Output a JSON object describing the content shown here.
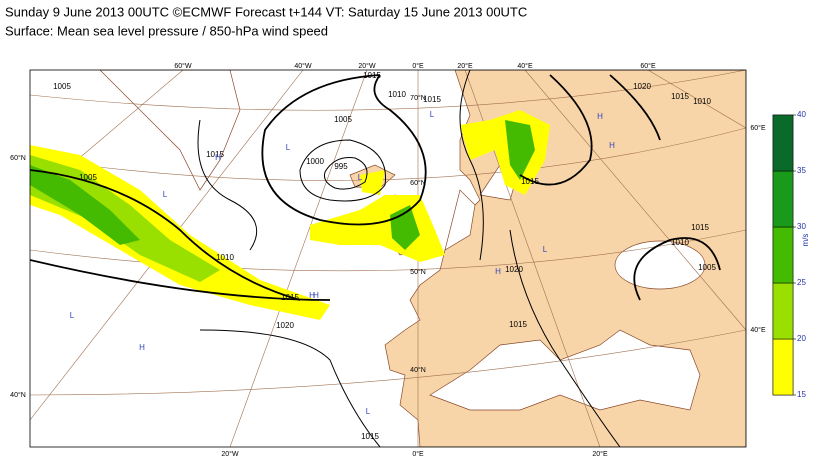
{
  "header": {
    "title": "Sunday 9 June 2013 00UTC ©ECMWF Forecast t+144 VT: Saturday 15 June 2013 00UTC",
    "subtitle": "Surface: Mean sea level pressure / 850-hPa wind speed"
  },
  "map": {
    "grid_labels": [
      "60°W",
      "40°W",
      "20°W",
      "0°E",
      "20°E",
      "40°E",
      "60°E",
      "60°N",
      "40°N",
      "60°E",
      "40°E",
      "20°W",
      "0°E",
      "20°E",
      "70°N",
      "60°N",
      "50°N",
      "40°N"
    ],
    "isobar_labels": [
      1005,
      1010,
      1015,
      1020,
      1015,
      1005,
      1000,
      995,
      1010,
      1015,
      1015,
      1015,
      1020,
      1015,
      1010,
      1010,
      1015,
      1005,
      1020,
      1015,
      1015,
      1005
    ],
    "centers": [
      "H",
      "L",
      "L",
      "H",
      "L",
      "L",
      "H",
      "H",
      "L",
      "H",
      "L",
      "H",
      "H",
      "L"
    ]
  },
  "colorbar": {
    "ticks": [
      15,
      20,
      25,
      30,
      35,
      40
    ],
    "colors": [
      "#ffff00",
      "#99e000",
      "#44bb00",
      "#1a9a1a",
      "#0a6a2a"
    ],
    "unit": "m/s"
  }
}
